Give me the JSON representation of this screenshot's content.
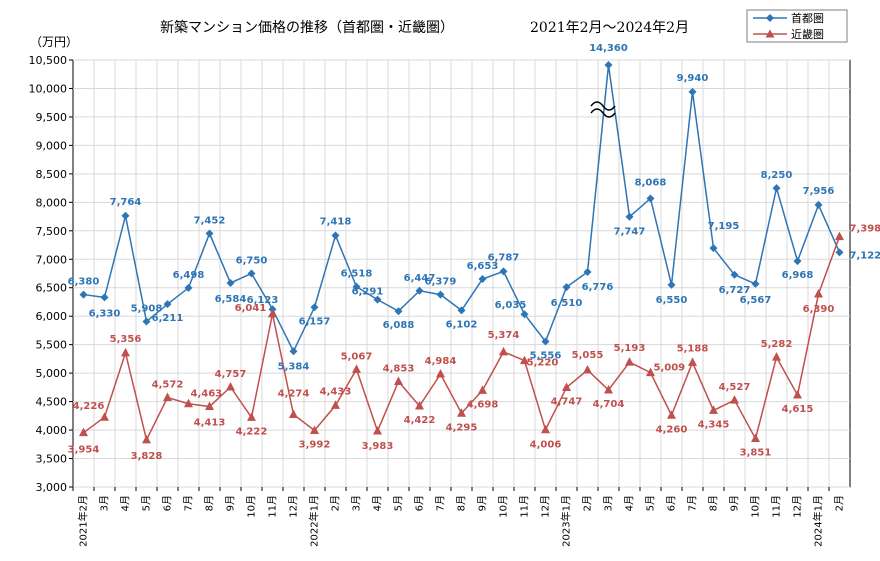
{
  "chart_data": {
    "type": "line",
    "title": "新築マンション価格の推移（首都圏・近畿圏）",
    "subtitle": "2021年2月～2024年2月",
    "ylabel": "（万円）",
    "ylim": [
      3000,
      10500
    ],
    "ytick_step": 500,
    "grid": true,
    "legend_position": "top-right",
    "colors": {
      "首都圏": "#2E75B6",
      "近畿圏": "#C0504D"
    },
    "categories": [
      "2021年2月",
      "3月",
      "4月",
      "5月",
      "6月",
      "7月",
      "8月",
      "9月",
      "10月",
      "11月",
      "12月",
      "2022年1月",
      "2月",
      "3月",
      "4月",
      "5月",
      "6月",
      "7月",
      "8月",
      "9月",
      "10月",
      "11月",
      "12月",
      "2023年1月",
      "2月",
      "3月",
      "4月",
      "5月",
      "6月",
      "7月",
      "8月",
      "9月",
      "10月",
      "11月",
      "12月",
      "2024年1月",
      "2月"
    ],
    "series": [
      {
        "name": "首都圏",
        "marker": "diamond",
        "values": [
          6380,
          6330,
          7764,
          5908,
          6211,
          6498,
          7452,
          6584,
          6750,
          6123,
          5384,
          6157,
          7418,
          6518,
          6291,
          6088,
          6447,
          6379,
          6102,
          6653,
          6787,
          6035,
          5556,
          6510,
          6776,
          14360,
          7747,
          8068,
          6550,
          9940,
          7195,
          6727,
          6567,
          8250,
          6968,
          7956,
          7122
        ],
        "labels": [
          "6,380",
          "6,330",
          "7,764",
          "5,908",
          "6,211",
          "6,498",
          "7,452",
          "6,584",
          "6,750",
          "6,123",
          "5,384",
          "6,157",
          "7,418",
          "6,518",
          "6,291",
          "6,088",
          "6,447",
          "6,379",
          "6,102",
          "6,653",
          "6,787",
          "6,035",
          "5,556",
          "6,510",
          "6,776",
          "14,360",
          "7,747",
          "8,068",
          "6,550",
          "9,940",
          "7,195",
          "6,727",
          "6,567",
          "8,250",
          "6,968",
          "7,956",
          "7,122"
        ]
      },
      {
        "name": "近畿圏",
        "marker": "triangle",
        "values": [
          3954,
          4226,
          5356,
          3828,
          4572,
          4463,
          4413,
          4757,
          4222,
          6041,
          4274,
          3992,
          4433,
          5067,
          3983,
          4853,
          4422,
          4984,
          4295,
          4698,
          5374,
          5220,
          4006,
          4747,
          5055,
          4704,
          5193,
          5009,
          4260,
          5188,
          4345,
          4527,
          3851,
          5282,
          4615,
          6390,
          7398
        ],
        "labels": [
          "3,954",
          "4,226",
          "5,356",
          "3,828",
          "4,572",
          "4,463",
          "4,413",
          "4,757",
          "4,222",
          "6,041",
          "4,274",
          "3,992",
          "4,433",
          "5,067",
          "3,983",
          "4,853",
          "4,422",
          "4,984",
          "4,295",
          "4,698",
          "5,374",
          "5,220",
          "4,006",
          "4,747",
          "5,055",
          "4,704",
          "5,193",
          "5,009",
          "4,260",
          "5,188",
          "4,345",
          "4,527",
          "3,851",
          "5,282",
          "4,615",
          "6,390",
          "7,398"
        ]
      }
    ],
    "annotations": [
      {
        "type": "axis-break",
        "series": "首都圏",
        "category": "3月",
        "note": "14,360 exceeds axis maximum; drawn near top with break symbol"
      }
    ]
  }
}
